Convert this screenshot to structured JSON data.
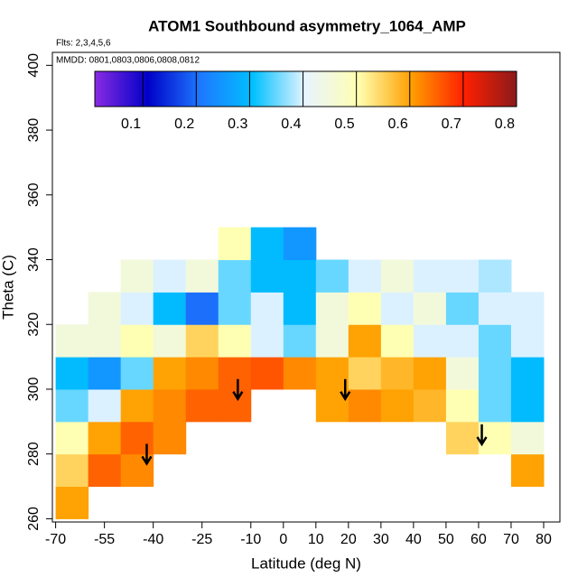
{
  "chart_data": {
    "type": "heatmap",
    "title": "ATOM1 Southbound asymmetry_1064_AMP",
    "notes": [
      "Flts: 2,3,4,5,6",
      "MMDD: 0801,0803,0806,0808,0812"
    ],
    "x_label": "Latitude (deg N)",
    "y_label": "Theta (C)",
    "xlim": [
      -71,
      85
    ],
    "ylim": [
      259,
      404
    ],
    "xticks": [
      -70,
      -55,
      -40,
      -25,
      -10,
      0,
      10,
      20,
      30,
      40,
      50,
      60,
      70,
      80
    ],
    "yticks": [
      260,
      280,
      300,
      320,
      340,
      360,
      380,
      400
    ],
    "x_edges": [
      -70,
      -60,
      -50,
      -40,
      -30,
      -20,
      -10,
      0,
      10,
      20,
      30,
      40,
      50,
      60,
      70,
      80
    ],
    "y_edges": [
      260,
      270,
      280,
      290,
      300,
      310,
      320,
      330,
      340,
      350
    ],
    "z": [
      [
        0.6,
        null,
        null,
        null,
        null,
        null,
        null,
        null,
        null,
        null,
        null,
        null,
        null,
        null,
        null
      ],
      [
        0.55,
        0.65,
        0.62,
        null,
        null,
        null,
        null,
        null,
        null,
        null,
        null,
        null,
        null,
        null,
        0.6
      ],
      [
        0.5,
        0.6,
        0.65,
        0.62,
        null,
        null,
        null,
        null,
        null,
        null,
        null,
        null,
        0.55,
        0.5,
        0.45
      ],
      [
        0.35,
        0.4,
        0.6,
        0.62,
        0.65,
        0.65,
        null,
        null,
        0.6,
        0.62,
        0.6,
        0.58,
        0.5,
        0.35,
        0.3
      ],
      [
        0.3,
        0.25,
        0.35,
        0.6,
        0.62,
        0.65,
        0.66,
        0.62,
        0.6,
        0.55,
        0.58,
        0.6,
        0.45,
        0.35,
        0.3
      ],
      [
        0.45,
        0.45,
        0.5,
        0.45,
        0.55,
        0.5,
        0.4,
        0.35,
        0.45,
        0.6,
        0.5,
        0.4,
        0.4,
        0.35,
        0.4
      ],
      [
        null,
        0.45,
        0.4,
        0.3,
        0.2,
        0.35,
        0.4,
        0.3,
        0.45,
        0.5,
        0.4,
        0.45,
        0.35,
        0.4,
        0.4
      ],
      [
        null,
        null,
        0.45,
        0.4,
        0.45,
        0.35,
        0.3,
        0.3,
        0.35,
        0.4,
        0.45,
        0.4,
        0.4,
        0.38,
        null
      ],
      [
        null,
        null,
        null,
        null,
        null,
        0.5,
        0.3,
        0.25,
        null,
        null,
        null,
        null,
        null,
        null,
        null
      ]
    ],
    "clim": [
      0.01,
      0.8
    ],
    "cticks": [
      0.1,
      0.2,
      0.3,
      0.4,
      0.5,
      0.6,
      0.7,
      0.8
    ],
    "colors": [
      "#8a2be2",
      "#0000c8",
      "#1e78ff",
      "#00c0ff",
      "#e8f4ff",
      "#ffffb0",
      "#ffa000",
      "#ff2000",
      "#8b1a1a"
    ],
    "arrows": {
      "x": [
        -42,
        -14,
        19,
        61
      ],
      "y": [
        277,
        297,
        297,
        283
      ]
    }
  }
}
